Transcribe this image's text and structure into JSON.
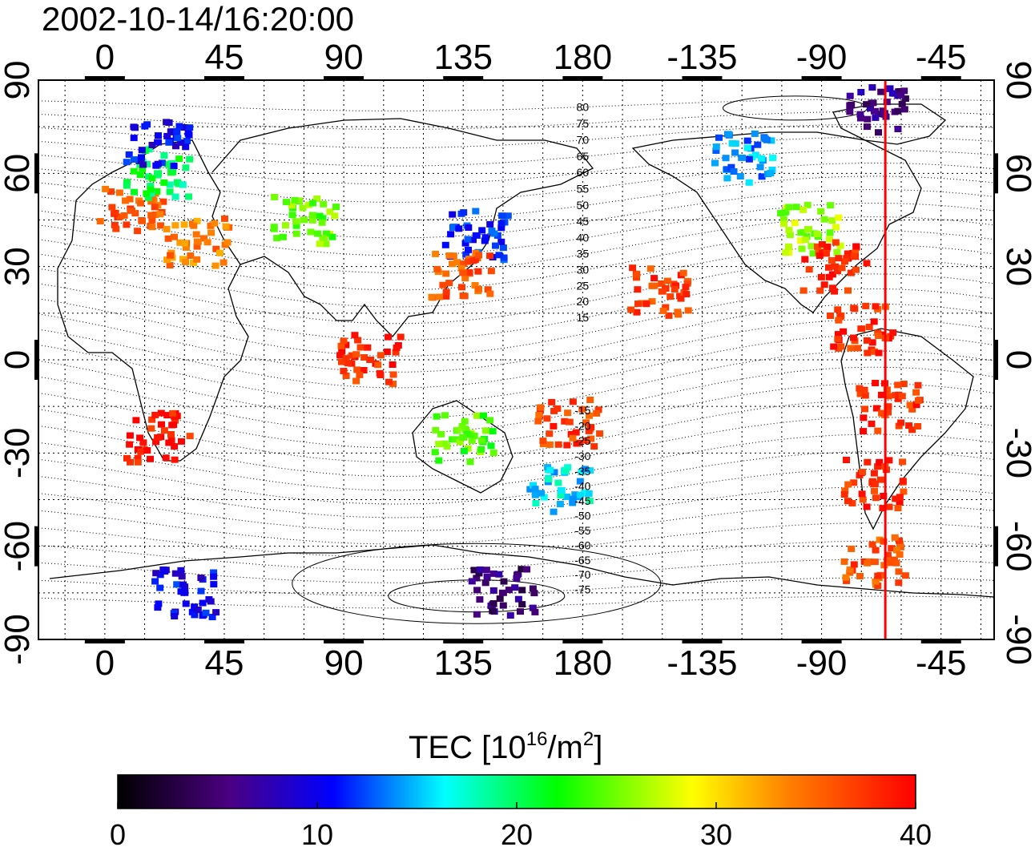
{
  "title": "2002-10-14/16:20:00",
  "map": {
    "x_axis_ticks": [
      "0",
      "45",
      "90",
      "135",
      "180",
      "-135",
      "-90",
      "-45"
    ],
    "y_axis_ticks": [
      "90",
      "60",
      "30",
      "0",
      "-30",
      "-60",
      "-90"
    ],
    "y_axis_ticks_right": [
      "90",
      "60",
      "30",
      "0",
      "-30",
      "-60",
      "-90"
    ],
    "lon_range_display": [
      -25,
      335
    ],
    "lat_range": [
      -90,
      90
    ],
    "grid": "dotted, 15 degree",
    "terminator_longitude": -66,
    "terminator_color": "#ff0000",
    "contour_labels_north": [
      "80",
      "75",
      "70",
      "65",
      "60",
      "55",
      "50",
      "45",
      "40",
      "35",
      "30",
      "25",
      "20",
      "15"
    ],
    "contour_labels_south": [
      "-15",
      "-20",
      "-25",
      "-30",
      "-35",
      "-40",
      "-45",
      "-50",
      "-55",
      "-60",
      "-65",
      "-70",
      "-75"
    ]
  },
  "colorbar": {
    "title_prefix": "TEC  [10",
    "title_sup1": "16",
    "title_mid": "/m",
    "title_sup2": "2",
    "title_suffix": "]",
    "ticks": [
      "0",
      "10",
      "20",
      "30",
      "40"
    ],
    "range": [
      0,
      40
    ],
    "colors": [
      "#000000",
      "#4b0082",
      "#0000ff",
      "#00ffff",
      "#00ff00",
      "#ffff00",
      "#ff8000",
      "#ff0000"
    ]
  },
  "chart_data": {
    "type": "heatmap",
    "title": "2002-10-14/16:20:00",
    "value_label": "TEC [10^16/m^2]",
    "value_range": [
      0,
      40
    ],
    "regions": [
      {
        "lon": 10,
        "lat": 48,
        "tec": 36
      },
      {
        "lon": 20,
        "lat": 60,
        "tec": 20
      },
      {
        "lon": 20,
        "lat": 70,
        "tec": 10
      },
      {
        "lon": 35,
        "lat": 38,
        "tec": 34
      },
      {
        "lon": 75,
        "lat": 45,
        "tec": 25
      },
      {
        "lon": 140,
        "lat": 40,
        "tec": 11
      },
      {
        "lon": 135,
        "lat": 28,
        "tec": 36
      },
      {
        "lon": 100,
        "lat": 0,
        "tec": 38
      },
      {
        "lon": 135,
        "lat": -25,
        "tec": 24
      },
      {
        "lon": 172,
        "lat": -42,
        "tec": 16
      },
      {
        "lon": 175,
        "lat": -20,
        "tec": 37
      },
      {
        "lon": -95,
        "lat": 42,
        "tec": 26
      },
      {
        "lon": -85,
        "lat": 30,
        "tec": 38
      },
      {
        "lon": -75,
        "lat": 10,
        "tec": 38
      },
      {
        "lon": -65,
        "lat": -15,
        "tec": 38
      },
      {
        "lon": -70,
        "lat": -40,
        "tec": 38
      },
      {
        "lon": -70,
        "lat": -65,
        "tec": 36
      },
      {
        "lon": -150,
        "lat": 22,
        "tec": 37
      },
      {
        "lon": 20,
        "lat": -25,
        "tec": 39
      },
      {
        "lon": 30,
        "lat": -75,
        "tec": 10
      },
      {
        "lon": 150,
        "lat": -75,
        "tec": 5
      },
      {
        "lon": -120,
        "lat": 65,
        "tec": 14
      },
      {
        "lon": -70,
        "lat": 80,
        "tec": 6
      }
    ]
  }
}
